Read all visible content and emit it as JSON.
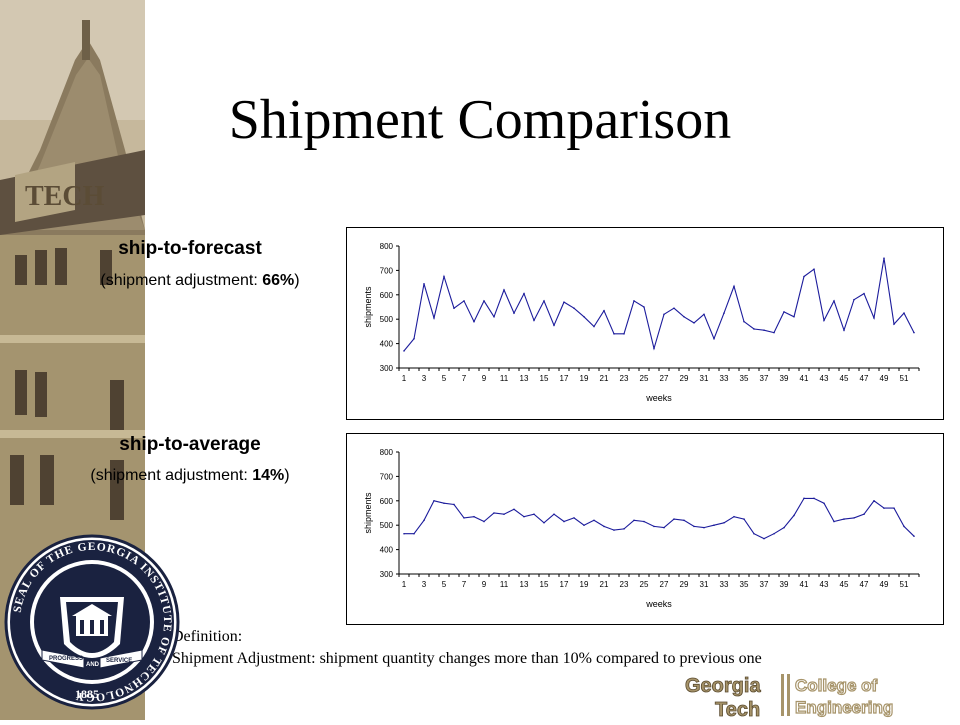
{
  "title": "Shipment Comparison",
  "labels": {
    "forecast_title": "ship-to-forecast",
    "forecast_sub_pre": "(shipment adjustment: ",
    "forecast_sub_val": "66%",
    "forecast_sub_post": ")",
    "average_title": "ship-to-average",
    "average_sub_pre": "(shipment adjustment: ",
    "average_sub_val": "14%",
    "average_sub_post": ")"
  },
  "definition": {
    "heading": "Definition:",
    "text": "Shipment Adjustment: shipment quantity changes more than 10% compared to previous one"
  },
  "seal": {
    "text": "SEAL OF THE GEORGIA INSTITUTE OF TECHNOLOGY",
    "year": "1885",
    "banner_left": "PROGRESS",
    "banner_right": "SERVICE",
    "banner_center": "AND"
  },
  "logo": {
    "line1": "Georgia",
    "line2": "Tech",
    "line3": "College of",
    "line4": "Engineering"
  },
  "colors": {
    "series": "#1c1c9c",
    "sidebar": "#c4b69a"
  },
  "chart_data": [
    {
      "type": "line",
      "xlabel": "weeks",
      "ylabel": "shipments",
      "ylim": [
        300,
        800
      ],
      "yticks": [
        300,
        400,
        500,
        600,
        700,
        800
      ],
      "x_tick_labels": [
        "1",
        "3",
        "5",
        "7",
        "9",
        "11",
        "13",
        "15",
        "17",
        "19",
        "21",
        "23",
        "25",
        "27",
        "29",
        "31",
        "33",
        "35",
        "37",
        "39",
        "41",
        "43",
        "45",
        "47",
        "49",
        "51"
      ],
      "grid": false,
      "x": [
        1,
        2,
        3,
        4,
        5,
        6,
        7,
        8,
        9,
        10,
        11,
        12,
        13,
        14,
        15,
        16,
        17,
        18,
        19,
        20,
        21,
        22,
        23,
        24,
        25,
        26,
        27,
        28,
        29,
        30,
        31,
        32,
        33,
        34,
        35,
        36,
        37,
        38,
        39,
        40,
        41,
        42,
        43,
        44,
        45,
        46,
        47,
        48,
        49,
        50,
        51,
        52
      ],
      "values": [
        370,
        420,
        645,
        505,
        675,
        545,
        575,
        490,
        575,
        510,
        620,
        525,
        605,
        495,
        575,
        475,
        570,
        545,
        510,
        470,
        535,
        440,
        440,
        575,
        550,
        380,
        520,
        545,
        510,
        485,
        520,
        420,
        525,
        635,
        490,
        460,
        455,
        445,
        530,
        510,
        675,
        705,
        495,
        575,
        455,
        580,
        605,
        505,
        750,
        480,
        525,
        445
      ]
    },
    {
      "type": "line",
      "xlabel": "weeks",
      "ylabel": "shipments",
      "ylim": [
        300,
        800
      ],
      "yticks": [
        300,
        400,
        500,
        600,
        700,
        800
      ],
      "x_tick_labels": [
        "1",
        "3",
        "5",
        "7",
        "9",
        "11",
        "13",
        "15",
        "17",
        "19",
        "21",
        "23",
        "25",
        "27",
        "29",
        "31",
        "33",
        "35",
        "37",
        "39",
        "41",
        "43",
        "45",
        "47",
        "49",
        "51"
      ],
      "grid": false,
      "x": [
        1,
        2,
        3,
        4,
        5,
        6,
        7,
        8,
        9,
        10,
        11,
        12,
        13,
        14,
        15,
        16,
        17,
        18,
        19,
        20,
        21,
        22,
        23,
        24,
        25,
        26,
        27,
        28,
        29,
        30,
        31,
        32,
        33,
        34,
        35,
        36,
        37,
        38,
        39,
        40,
        41,
        42,
        43,
        44,
        45,
        46,
        47,
        48,
        49,
        50,
        51,
        52
      ],
      "values": [
        465,
        465,
        520,
        600,
        590,
        585,
        530,
        535,
        515,
        550,
        545,
        565,
        535,
        545,
        510,
        545,
        515,
        530,
        500,
        520,
        495,
        480,
        485,
        520,
        515,
        495,
        490,
        525,
        520,
        495,
        490,
        500,
        510,
        535,
        525,
        465,
        445,
        465,
        490,
        540,
        610,
        610,
        590,
        515,
        525,
        530,
        545,
        600,
        570,
        570,
        495,
        455
      ]
    }
  ]
}
